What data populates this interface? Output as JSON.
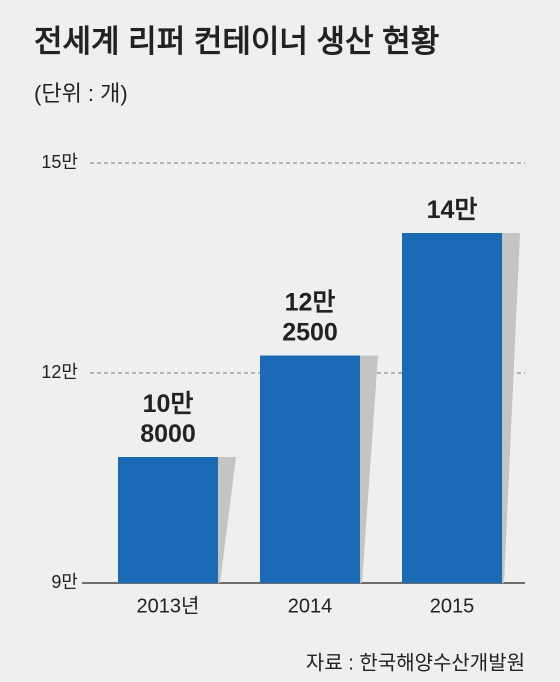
{
  "chart_data": {
    "type": "bar",
    "title": "전세계 리퍼 컨테이너 생산 현황",
    "subtitle": "(단위 : 개)",
    "categories": [
      "2013년",
      "2014",
      "2015"
    ],
    "values": [
      108000,
      122500,
      140000
    ],
    "value_labels": [
      "10만\n8000",
      "12만\n2500",
      "14만"
    ],
    "color": "#1b6ab5",
    "ylim": [
      90000,
      150000
    ],
    "yticks": [
      {
        "value": 90000,
        "label": "9만"
      },
      {
        "value": 120000,
        "label": "12만"
      },
      {
        "value": 150000,
        "label": "15만"
      }
    ],
    "grid": true,
    "source": "자료 : 한국해양수산개발원"
  }
}
